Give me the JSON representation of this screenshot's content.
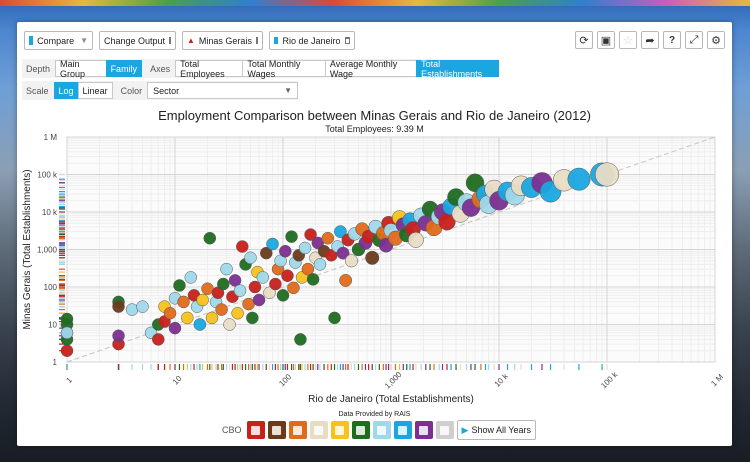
{
  "toolbar": {
    "compare_label": "Compare",
    "change_output_label": "Change Output",
    "location_1": "Minas Gerais",
    "location_2": "Rio de Janeiro"
  },
  "controls": {
    "depth_label": "Depth",
    "depth_options": [
      "Main Group",
      "Family"
    ],
    "depth_selected": "Family",
    "axes_label": "Axes",
    "axes_options": [
      "Total Employees",
      "Total Monthly Wages",
      "Average Monthly Wage",
      "Total Establishments"
    ],
    "axes_selected": "Total Establishments",
    "scale_label": "Scale",
    "scale_options": [
      "Log",
      "Linear"
    ],
    "scale_selected": "Log",
    "color_label": "Color",
    "color_selected": "Sector"
  },
  "footer": {
    "source": "Data Provided by RAIS",
    "legend_title": "CBO",
    "show_all": "Show All Years"
  },
  "colors": {
    "accent": "#1aa7e1",
    "sectors": [
      "#c8201b",
      "#6b3a1a",
      "#e06c1a",
      "#e8dcc5",
      "#f7c21c",
      "#1f6b1f",
      "#9fd8e8",
      "#1aa7e1",
      "#7c2f91",
      "#cfcfcf"
    ]
  },
  "legend_icons": [
    "person-icon",
    "tools-icon",
    "book-icon",
    "flask-icon",
    "cluster-icon",
    "leaf-icon",
    "gear-icon",
    "shop-icon",
    "building-icon",
    "question-icon"
  ],
  "chart_data": {
    "type": "scatter",
    "title": "Employment Comparison between Minas Gerais and Rio de Janeiro (2012)",
    "subtitle": "Total Employees: 9.39 M",
    "xlabel": "Rio de Janeiro (Total Establishments)",
    "ylabel": "Minas Gerais (Total Establishments)",
    "scale": "log",
    "xlim": [
      1,
      1000000
    ],
    "ylim": [
      1,
      1000000
    ],
    "x_ticks": [
      "1",
      "10",
      "100",
      "1,000",
      "10 k",
      "100 k",
      "1 M"
    ],
    "y_ticks": [
      "1",
      "10",
      "100",
      "1,000",
      "10 k",
      "100 k",
      "1 M"
    ],
    "grid": true,
    "reference_line": "y = x",
    "points": [
      [
        1,
        2,
        0
      ],
      [
        1,
        4,
        5
      ],
      [
        1,
        6,
        8
      ],
      [
        1,
        10,
        5
      ],
      [
        1,
        14,
        5
      ],
      [
        1,
        6,
        6
      ],
      [
        3,
        40,
        5
      ],
      [
        3,
        30,
        1
      ],
      [
        3,
        3,
        0
      ],
      [
        3,
        5,
        8
      ],
      [
        4,
        25,
        6
      ],
      [
        5,
        30,
        6
      ],
      [
        6,
        6,
        6
      ],
      [
        7,
        10,
        5
      ],
      [
        7,
        4,
        0
      ],
      [
        8,
        30,
        4
      ],
      [
        8,
        12,
        0
      ],
      [
        9,
        20,
        2
      ],
      [
        10,
        50,
        6
      ],
      [
        10,
        8,
        8
      ],
      [
        11,
        110,
        5
      ],
      [
        12,
        40,
        2
      ],
      [
        13,
        15,
        4
      ],
      [
        14,
        180,
        6
      ],
      [
        15,
        60,
        0
      ],
      [
        16,
        30,
        6
      ],
      [
        17,
        10,
        7
      ],
      [
        18,
        45,
        4
      ],
      [
        20,
        90,
        2
      ],
      [
        21,
        2000,
        5
      ],
      [
        22,
        15,
        4
      ],
      [
        24,
        40,
        6
      ],
      [
        25,
        70,
        0
      ],
      [
        27,
        25,
        2
      ],
      [
        28,
        120,
        5
      ],
      [
        30,
        300,
        6
      ],
      [
        32,
        10,
        3
      ],
      [
        34,
        55,
        0
      ],
      [
        36,
        150,
        8
      ],
      [
        38,
        20,
        4
      ],
      [
        40,
        80,
        6
      ],
      [
        42,
        1200,
        0
      ],
      [
        45,
        400,
        5
      ],
      [
        48,
        35,
        2
      ],
      [
        50,
        600,
        6
      ],
      [
        52,
        15,
        5
      ],
      [
        55,
        100,
        0
      ],
      [
        58,
        250,
        4
      ],
      [
        60,
        45,
        8
      ],
      [
        65,
        180,
        6
      ],
      [
        70,
        800,
        1
      ],
      [
        75,
        70,
        3
      ],
      [
        80,
        1400,
        7
      ],
      [
        85,
        120,
        0
      ],
      [
        90,
        300,
        2
      ],
      [
        95,
        500,
        6
      ],
      [
        100,
        60,
        5
      ],
      [
        105,
        900,
        8
      ],
      [
        110,
        200,
        0
      ],
      [
        120,
        2200,
        5
      ],
      [
        125,
        95,
        2
      ],
      [
        130,
        450,
        6
      ],
      [
        140,
        700,
        1
      ],
      [
        145,
        4,
        5
      ],
      [
        150,
        180,
        4
      ],
      [
        160,
        1100,
        6
      ],
      [
        170,
        300,
        2
      ],
      [
        180,
        2500,
        0
      ],
      [
        190,
        160,
        5
      ],
      [
        200,
        600,
        3
      ],
      [
        210,
        1500,
        8
      ],
      [
        220,
        400,
        6
      ],
      [
        240,
        900,
        1
      ],
      [
        260,
        2000,
        2
      ],
      [
        280,
        700,
        0
      ],
      [
        300,
        15,
        5
      ],
      [
        320,
        1200,
        6
      ],
      [
        340,
        3000,
        7
      ],
      [
        360,
        800,
        8
      ],
      [
        380,
        150,
        2
      ],
      [
        400,
        1800,
        0
      ],
      [
        430,
        500,
        3
      ],
      [
        460,
        2600,
        6
      ],
      [
        500,
        1000,
        5
      ],
      [
        540,
        3500,
        2
      ],
      [
        580,
        1500,
        8
      ],
      [
        620,
        2200,
        0
      ],
      [
        670,
        600,
        1
      ],
      [
        720,
        4000,
        6
      ],
      [
        780,
        1800,
        5
      ],
      [
        850,
        2700,
        2
      ],
      [
        900,
        1300,
        8
      ],
      [
        950,
        5000,
        0
      ],
      [
        1000,
        3200,
        6
      ],
      [
        1100,
        2000,
        2
      ],
      [
        1200,
        7000,
        4
      ],
      [
        1300,
        4500,
        8
      ],
      [
        1400,
        2500,
        5
      ],
      [
        1500,
        6000,
        7
      ],
      [
        1600,
        3500,
        0
      ],
      [
        1700,
        1800,
        3
      ],
      [
        1900,
        8000,
        6
      ],
      [
        2100,
        5000,
        8
      ],
      [
        2300,
        12000,
        5
      ],
      [
        2500,
        3800,
        2
      ],
      [
        2800,
        7500,
        6
      ],
      [
        3000,
        10000,
        8
      ],
      [
        3300,
        5500,
        0
      ],
      [
        3600,
        14000,
        7
      ],
      [
        4000,
        25000,
        5
      ],
      [
        4400,
        9000,
        3
      ],
      [
        5000,
        18000,
        6
      ],
      [
        5500,
        13000,
        8
      ],
      [
        6000,
        60000,
        5
      ],
      [
        6800,
        22000,
        2
      ],
      [
        7500,
        30000,
        7
      ],
      [
        8000,
        16000,
        6
      ],
      [
        9000,
        40000,
        3
      ],
      [
        10000,
        20000,
        8
      ],
      [
        12000,
        35000,
        7
      ],
      [
        14000,
        28000,
        6
      ],
      [
        16000,
        50000,
        3
      ],
      [
        20000,
        45000,
        7
      ],
      [
        25000,
        60000,
        8
      ],
      [
        30000,
        35000,
        7
      ],
      [
        40000,
        70000,
        3
      ],
      [
        55000,
        75000,
        7
      ],
      [
        90000,
        100000,
        7
      ],
      [
        100000,
        100000,
        3
      ]
    ]
  }
}
